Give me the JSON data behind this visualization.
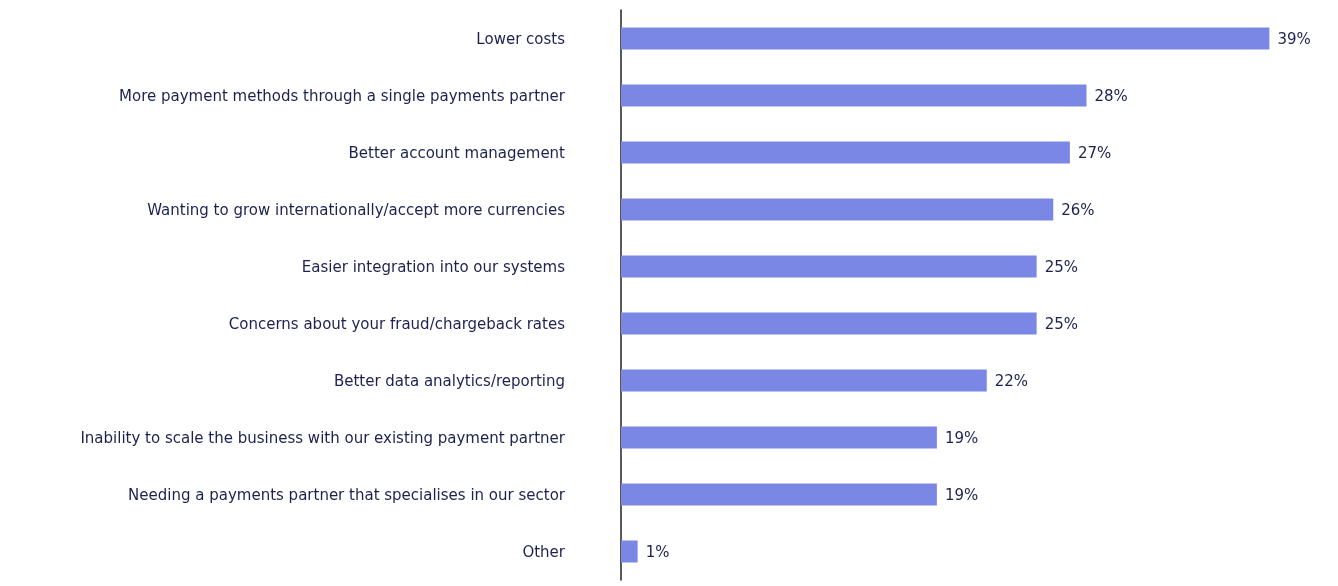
{
  "chart_data": {
    "type": "bar",
    "orientation": "horizontal",
    "categories": [
      "Lower costs",
      "More payment methods through a single payments partner",
      "Better account management",
      "Wanting to grow internationally/accept more currencies",
      "Easier integration into our systems",
      "Concerns about your fraud/chargeback rates",
      "Better data analytics/reporting",
      "Inability to scale the business with our existing payment partner",
      "Needing a payments partner that specialises in our sector",
      "Other"
    ],
    "values": [
      39,
      28,
      27,
      26,
      25,
      25,
      22,
      19,
      19,
      1
    ],
    "value_labels": [
      "39%",
      "28%",
      "27%",
      "26%",
      "25%",
      "25%",
      "22%",
      "19%",
      "19%",
      "1%"
    ],
    "color": "#7b87e5"
  }
}
